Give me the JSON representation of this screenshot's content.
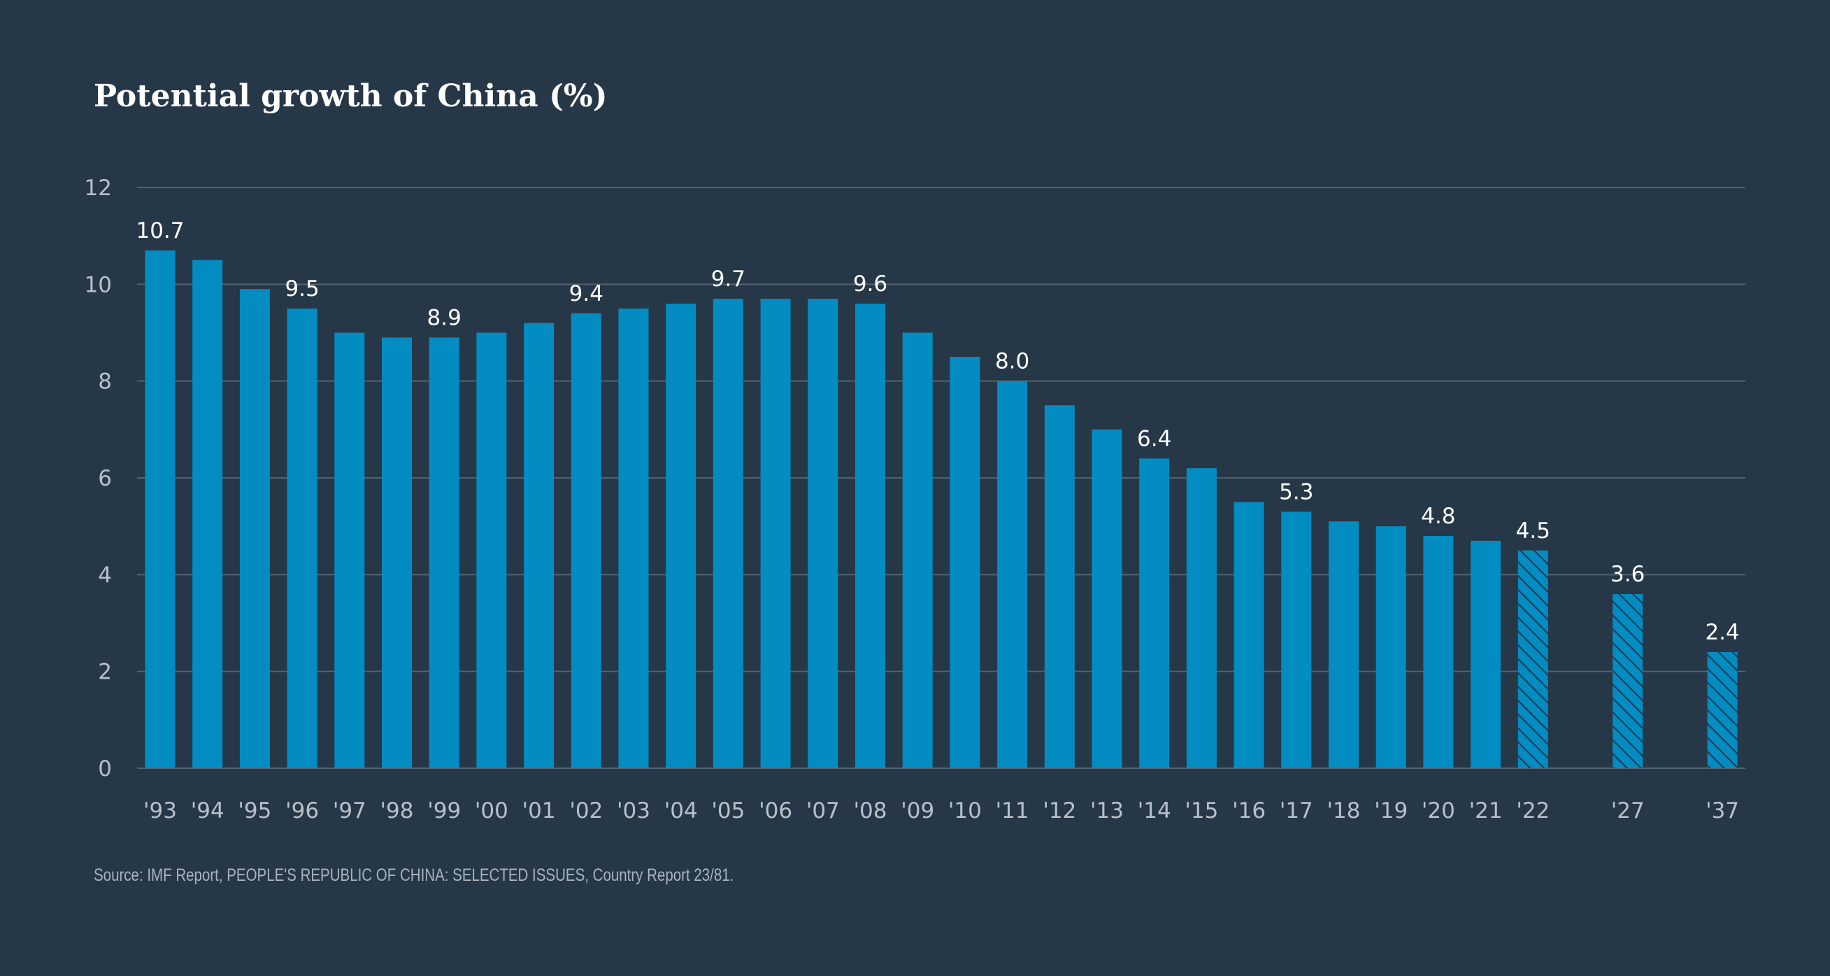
{
  "colors": {
    "background": "#263748",
    "bar": "#038cc2",
    "bar_projected_hatch": "#1e3a52",
    "gridline": "#52626f",
    "text": "#ffffff",
    "axis_text": "#b8c0c8",
    "source_text": "#a9b3bd"
  },
  "chart_data": {
    "type": "bar",
    "title": "Potential growth of China (%)",
    "source": "Source: IMF Report, PEOPLE'S REPUBLIC OF CHINA: SELECTED ISSUES, Country Report 23/81.",
    "xlabel": "",
    "ylabel": "",
    "ylim": [
      0,
      12
    ],
    "y_ticks": [
      0,
      2,
      4,
      6,
      8,
      10,
      12
    ],
    "grid": true,
    "categories": [
      "'93",
      "'94",
      "'95",
      "'96",
      "'97",
      "'98",
      "'99",
      "'00",
      "'01",
      "'02",
      "'03",
      "'04",
      "'05",
      "'06",
      "'07",
      "'08",
      "'09",
      "'10",
      "'11",
      "'12",
      "'13",
      "'14",
      "'15",
      "'16",
      "'17",
      "'18",
      "'19",
      "'20",
      "'21",
      "'22",
      "'27",
      "'37"
    ],
    "values": [
      10.7,
      10.5,
      9.9,
      9.5,
      9.0,
      8.9,
      8.9,
      9.0,
      9.2,
      9.4,
      9.5,
      9.6,
      9.7,
      9.7,
      9.7,
      9.6,
      9.0,
      8.5,
      8.0,
      7.5,
      7.0,
      6.4,
      6.2,
      5.5,
      5.3,
      5.1,
      5.0,
      4.8,
      4.7,
      4.5,
      3.6,
      2.4
    ],
    "slot_positions": [
      0,
      1,
      2,
      3,
      4,
      5,
      6,
      7,
      8,
      9,
      10,
      11,
      12,
      13,
      14,
      15,
      16,
      17,
      18,
      19,
      20,
      21,
      22,
      23,
      24,
      25,
      26,
      27,
      28,
      29,
      31,
      33
    ],
    "projected": [
      false,
      false,
      false,
      false,
      false,
      false,
      false,
      false,
      false,
      false,
      false,
      false,
      false,
      false,
      false,
      false,
      false,
      false,
      false,
      false,
      false,
      false,
      false,
      false,
      false,
      false,
      false,
      false,
      false,
      true,
      true,
      true
    ],
    "data_labels": [
      "10.7",
      "",
      "",
      "9.5",
      "",
      "",
      "8.9",
      "",
      "",
      "9.4",
      "",
      "",
      "9.7",
      "",
      "",
      "9.6",
      "",
      "",
      "8.0",
      "",
      "",
      "6.4",
      "",
      "",
      "5.3",
      "",
      "",
      "4.8",
      "",
      "4.5",
      "3.6",
      "2.4"
    ]
  }
}
